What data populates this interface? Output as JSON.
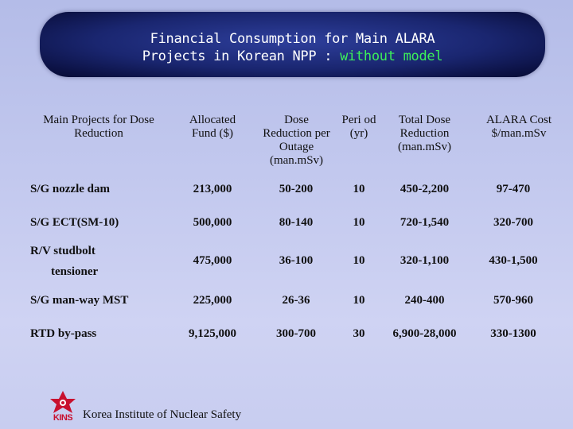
{
  "title": {
    "line1": "Financial Consumption for Main ALARA",
    "line2_main": "Projects in Korean NPP : ",
    "line2_accent": "without model"
  },
  "columns": [
    "Main Projects for Dose Reduction",
    "Allocated Fund ($)",
    "Dose Reduction per Outage (man.mSv)",
    "Peri od (yr)",
    "Total Dose Reduction (man.mSv)",
    "ALARA Cost $/man.mSv"
  ],
  "rows": [
    {
      "project": "S/G nozzle dam",
      "fund": "213,000",
      "dose": "50-200",
      "period": "10",
      "total": "450-2,200",
      "cost": "97-470"
    },
    {
      "project": "S/G ECT(SM-10)",
      "fund": "500,000",
      "dose": "80-140",
      "period": "10",
      "total": "720-1,540",
      "cost": "320-700"
    },
    {
      "project_line1": "R/V studbolt",
      "project_line2": "tensioner",
      "fund": "475,000",
      "dose": "36-100",
      "period": "10",
      "total": "320-1,100",
      "cost": "430-1,500"
    },
    {
      "project": "S/G man-way MST",
      "fund": "225,000",
      "dose": "26-36",
      "period": "10",
      "total": "240-400",
      "cost": "570-960"
    },
    {
      "project": "RTD by-pass",
      "fund": "9,125,000",
      "dose": "300-700",
      "period": "30",
      "total": "6,900-28,000",
      "cost": "330-1300"
    }
  ],
  "footer": {
    "logo_text": "KINS",
    "org": "Korea Institute of Nuclear Safety"
  },
  "colors": {
    "title_bg": "#1a2670",
    "title_text": "#ffffff",
    "accent": "#3cf05a",
    "logo_red": "#c8102e"
  }
}
